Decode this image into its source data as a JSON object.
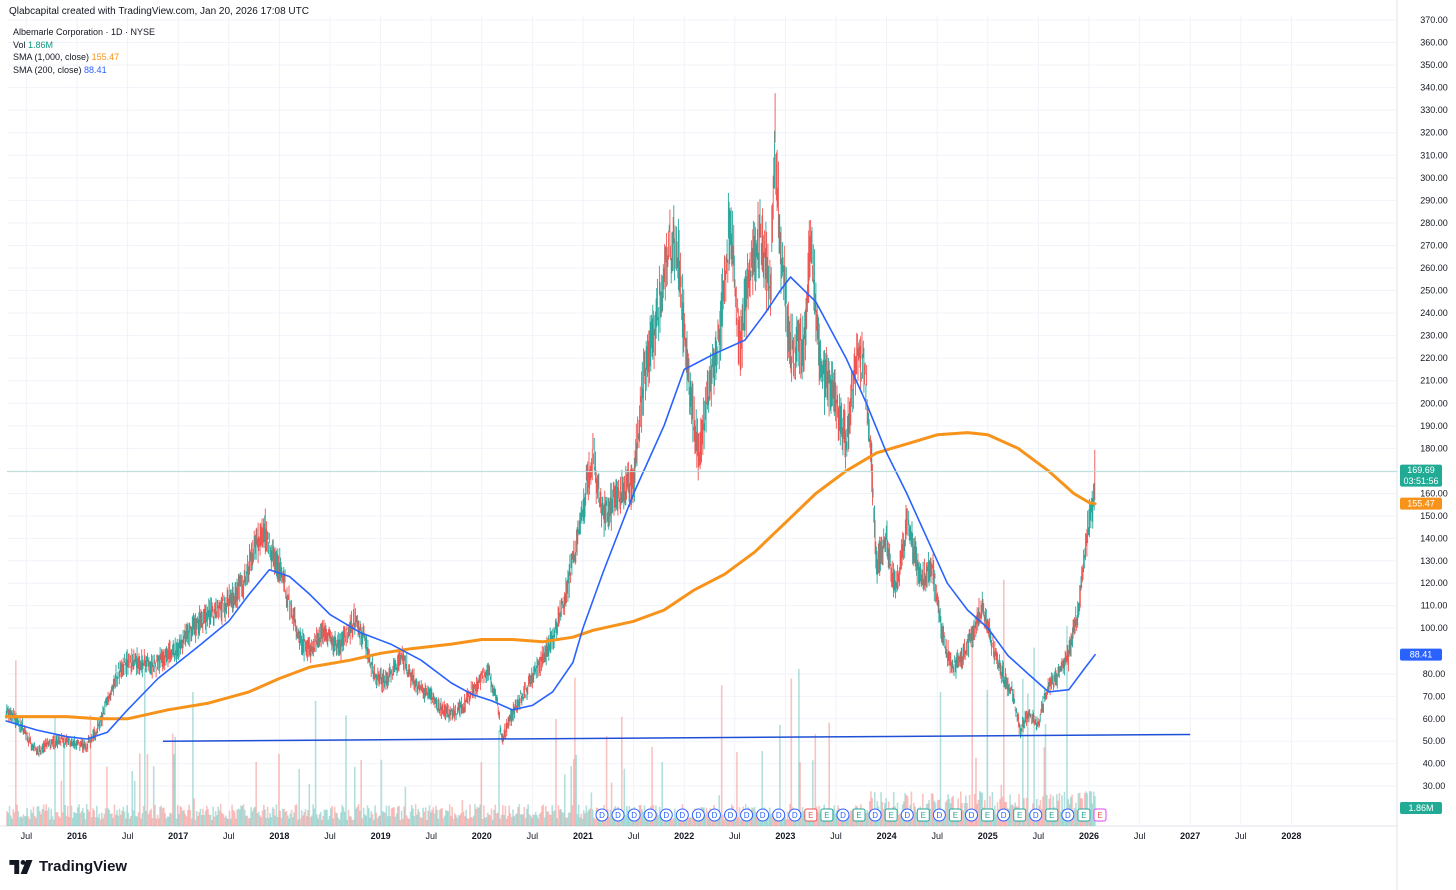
{
  "header": {
    "credit": "Qlabcapital created with TradingView.com, Jan 20, 2026 17:08 UTC"
  },
  "legend": {
    "symbol": "Albemarle Corporation · 1D · NYSE",
    "vol_label": "Vol",
    "vol_value": "1.86M",
    "sma1000_label": "SMA (1,000, close)",
    "sma1000_value": "155.47",
    "sma200_label": "SMA (200, close)",
    "sma200_value": "88.41"
  },
  "brand": {
    "name": "TradingView",
    "icon": "tradingview-logo-icon"
  },
  "colors": {
    "sma1000": "#f7931a",
    "sma200": "#2962ff",
    "up": "#26a69a",
    "down": "#ef5350",
    "support_line": "#1e4fd6",
    "price_line": "#b8dcd7",
    "dividend_marker": "#2962ff",
    "earnings_marker": "#ef5350"
  },
  "price_badges": {
    "last_price": "169.69",
    "countdown": "03:51:56",
    "sma1000": "155.47",
    "sma200": "88.41",
    "volume": "1.86M"
  },
  "event_markers": {
    "dividend": "D",
    "earnings": "E",
    "sequence": [
      "D",
      "D",
      "D",
      "D",
      "D",
      "D",
      "D",
      "D",
      "D",
      "D",
      "D",
      "D",
      "D",
      "E",
      "E",
      "D",
      "E",
      "D",
      "E",
      "D",
      "E",
      "D",
      "E",
      "D",
      "E",
      "D",
      "E",
      "D",
      "E",
      "D",
      "E",
      "E"
    ]
  },
  "chart_data": {
    "type": "line",
    "title": "Albemarle Corporation · 1D · NYSE",
    "y_axis": {
      "position": "right",
      "ticks": [
        30,
        40,
        50,
        60,
        70,
        80,
        100,
        110,
        120,
        130,
        140,
        150,
        160,
        170,
        180,
        190,
        200,
        210,
        220,
        230,
        240,
        250,
        260,
        270,
        280,
        290,
        300,
        310,
        320,
        330,
        340,
        350,
        360,
        370
      ],
      "tick_labels": [
        "30.00",
        "40.00",
        "50.00",
        "60.00",
        "70.00",
        "80.00",
        "100.00",
        "110.00",
        "120.00",
        "130.00",
        "140.00",
        "150.00",
        "160.00",
        "",
        "180.00",
        "190.00",
        "200.00",
        "210.00",
        "220.00",
        "230.00",
        "240.00",
        "250.00",
        "260.00",
        "270.00",
        "280.00",
        "290.00",
        "300.00",
        "310.00",
        "320.00",
        "330.00",
        "340.00",
        "350.00",
        "360.00",
        "370.00"
      ],
      "ylim": [
        25,
        372
      ]
    },
    "x_axis": {
      "xlim": [
        2015.3,
        2028.85
      ],
      "ticks": [
        {
          "t": 2015.5,
          "label": "Jul"
        },
        {
          "t": 2016.0,
          "label": "2016"
        },
        {
          "t": 2016.5,
          "label": "Jul"
        },
        {
          "t": 2017.0,
          "label": "2017"
        },
        {
          "t": 2017.5,
          "label": "Jul"
        },
        {
          "t": 2018.0,
          "label": "2018"
        },
        {
          "t": 2018.5,
          "label": "Jul"
        },
        {
          "t": 2019.0,
          "label": "2019"
        },
        {
          "t": 2019.5,
          "label": "Jul"
        },
        {
          "t": 2020.0,
          "label": "2020"
        },
        {
          "t": 2020.5,
          "label": "Jul"
        },
        {
          "t": 2021.0,
          "label": "2021"
        },
        {
          "t": 2021.5,
          "label": "Jul"
        },
        {
          "t": 2022.0,
          "label": "2022"
        },
        {
          "t": 2022.5,
          "label": "Jul"
        },
        {
          "t": 2023.0,
          "label": "2023"
        },
        {
          "t": 2023.5,
          "label": "Jul"
        },
        {
          "t": 2024.0,
          "label": "2024"
        },
        {
          "t": 2024.5,
          "label": "Jul"
        },
        {
          "t": 2025.0,
          "label": "2025"
        },
        {
          "t": 2025.5,
          "label": "Jul"
        },
        {
          "t": 2026.0,
          "label": "2026"
        },
        {
          "t": 2026.5,
          "label": "Jul"
        },
        {
          "t": 2027.0,
          "label": "2027"
        },
        {
          "t": 2027.5,
          "label": "Jul"
        },
        {
          "t": 2028.0,
          "label": "2028"
        }
      ]
    },
    "grid": true,
    "last_price": 169.69,
    "price_path": [
      [
        2015.3,
        64
      ],
      [
        2015.45,
        57
      ],
      [
        2015.6,
        45
      ],
      [
        2015.75,
        50
      ],
      [
        2015.9,
        50
      ],
      [
        2016.0,
        49
      ],
      [
        2016.1,
        48
      ],
      [
        2016.2,
        55
      ],
      [
        2016.3,
        68
      ],
      [
        2016.4,
        80
      ],
      [
        2016.5,
        85
      ],
      [
        2016.6,
        85
      ],
      [
        2016.75,
        83
      ],
      [
        2016.9,
        89
      ],
      [
        2017.0,
        92
      ],
      [
        2017.15,
        100
      ],
      [
        2017.3,
        106
      ],
      [
        2017.45,
        110
      ],
      [
        2017.55,
        115
      ],
      [
        2017.65,
        120
      ],
      [
        2017.75,
        137
      ],
      [
        2017.85,
        144
      ],
      [
        2017.95,
        130
      ],
      [
        2018.0,
        128
      ],
      [
        2018.1,
        110
      ],
      [
        2018.2,
        95
      ],
      [
        2018.3,
        90
      ],
      [
        2018.45,
        98
      ],
      [
        2018.6,
        92
      ],
      [
        2018.75,
        105
      ],
      [
        2018.85,
        93
      ],
      [
        2018.95,
        78
      ],
      [
        2019.05,
        77
      ],
      [
        2019.2,
        88
      ],
      [
        2019.35,
        75
      ],
      [
        2019.5,
        70
      ],
      [
        2019.6,
        64
      ],
      [
        2019.75,
        62
      ],
      [
        2019.9,
        72
      ],
      [
        2020.05,
        81
      ],
      [
        2020.15,
        70
      ],
      [
        2020.2,
        51
      ],
      [
        2020.3,
        62
      ],
      [
        2020.4,
        70
      ],
      [
        2020.5,
        78
      ],
      [
        2020.6,
        87
      ],
      [
        2020.7,
        95
      ],
      [
        2020.8,
        110
      ],
      [
        2020.9,
        130
      ],
      [
        2021.0,
        150
      ],
      [
        2021.05,
        170
      ],
      [
        2021.1,
        175
      ],
      [
        2021.2,
        150
      ],
      [
        2021.35,
        160
      ],
      [
        2021.5,
        165
      ],
      [
        2021.6,
        210
      ],
      [
        2021.7,
        232
      ],
      [
        2021.8,
        255
      ],
      [
        2021.85,
        270
      ],
      [
        2021.95,
        265
      ],
      [
        2022.0,
        230
      ],
      [
        2022.1,
        190
      ],
      [
        2022.15,
        175
      ],
      [
        2022.25,
        210
      ],
      [
        2022.35,
        230
      ],
      [
        2022.45,
        280
      ],
      [
        2022.55,
        225
      ],
      [
        2022.65,
        260
      ],
      [
        2022.75,
        275
      ],
      [
        2022.85,
        250
      ],
      [
        2022.9,
        320
      ],
      [
        2022.95,
        270
      ],
      [
        2023.0,
        250
      ],
      [
        2023.05,
        222
      ],
      [
        2023.1,
        225
      ],
      [
        2023.2,
        230
      ],
      [
        2023.25,
        275
      ],
      [
        2023.35,
        215
      ],
      [
        2023.5,
        200
      ],
      [
        2023.6,
        183
      ],
      [
        2023.7,
        220
      ],
      [
        2023.78,
        215
      ],
      [
        2023.85,
        175
      ],
      [
        2023.9,
        128
      ],
      [
        2024.0,
        140
      ],
      [
        2024.05,
        125
      ],
      [
        2024.1,
        118
      ],
      [
        2024.2,
        148
      ],
      [
        2024.35,
        120
      ],
      [
        2024.45,
        128
      ],
      [
        2024.55,
        97
      ],
      [
        2024.65,
        82
      ],
      [
        2024.75,
        88
      ],
      [
        2024.85,
        98
      ],
      [
        2024.95,
        110
      ],
      [
        2025.05,
        92
      ],
      [
        2025.15,
        80
      ],
      [
        2025.25,
        70
      ],
      [
        2025.32,
        55
      ],
      [
        2025.4,
        62
      ],
      [
        2025.5,
        58
      ],
      [
        2025.6,
        75
      ],
      [
        2025.7,
        80
      ],
      [
        2025.8,
        88
      ],
      [
        2025.85,
        100
      ],
      [
        2025.9,
        110
      ],
      [
        2025.95,
        130
      ],
      [
        2026.0,
        148
      ],
      [
        2026.04,
        155
      ],
      [
        2026.06,
        169.69
      ]
    ],
    "series": [
      {
        "name": "SMA (1,000, close)",
        "values": [
          [
            2015.3,
            61
          ],
          [
            2015.6,
            61
          ],
          [
            2015.9,
            61
          ],
          [
            2016.2,
            60
          ],
          [
            2016.5,
            60
          ],
          [
            2016.9,
            64
          ],
          [
            2017.3,
            67
          ],
          [
            2017.7,
            72
          ],
          [
            2018.0,
            78
          ],
          [
            2018.3,
            83
          ],
          [
            2018.7,
            86
          ],
          [
            2019.0,
            89
          ],
          [
            2019.3,
            91
          ],
          [
            2019.7,
            93
          ],
          [
            2020.0,
            95
          ],
          [
            2020.3,
            95
          ],
          [
            2020.6,
            94
          ],
          [
            2020.9,
            96
          ],
          [
            2021.1,
            99
          ],
          [
            2021.5,
            103
          ],
          [
            2021.8,
            108
          ],
          [
            2022.1,
            117
          ],
          [
            2022.4,
            124
          ],
          [
            2022.7,
            134
          ],
          [
            2023.0,
            147
          ],
          [
            2023.3,
            160
          ],
          [
            2023.6,
            170
          ],
          [
            2023.9,
            178
          ],
          [
            2024.2,
            182
          ],
          [
            2024.5,
            186
          ],
          [
            2024.8,
            187
          ],
          [
            2025.0,
            186
          ],
          [
            2025.3,
            180
          ],
          [
            2025.6,
            170
          ],
          [
            2025.85,
            160
          ],
          [
            2026.0,
            156
          ],
          [
            2026.06,
            155.47
          ]
        ]
      },
      {
        "name": "SMA (200, close)",
        "values": [
          [
            2015.3,
            59
          ],
          [
            2015.6,
            55
          ],
          [
            2015.9,
            52
          ],
          [
            2016.1,
            51
          ],
          [
            2016.3,
            54
          ],
          [
            2016.5,
            64
          ],
          [
            2016.8,
            78
          ],
          [
            2017.2,
            92
          ],
          [
            2017.5,
            103
          ],
          [
            2017.7,
            115
          ],
          [
            2017.9,
            126
          ],
          [
            2018.1,
            123
          ],
          [
            2018.3,
            115
          ],
          [
            2018.5,
            106
          ],
          [
            2018.8,
            98
          ],
          [
            2019.1,
            93
          ],
          [
            2019.4,
            86
          ],
          [
            2019.7,
            76
          ],
          [
            2019.9,
            71
          ],
          [
            2020.1,
            68
          ],
          [
            2020.3,
            64
          ],
          [
            2020.5,
            66
          ],
          [
            2020.7,
            72
          ],
          [
            2020.9,
            85
          ],
          [
            2021.0,
            100
          ],
          [
            2021.2,
            125
          ],
          [
            2021.5,
            160
          ],
          [
            2021.8,
            190
          ],
          [
            2022.0,
            215
          ],
          [
            2022.3,
            222
          ],
          [
            2022.6,
            228
          ],
          [
            2022.8,
            240
          ],
          [
            2022.95,
            250
          ],
          [
            2023.05,
            256
          ],
          [
            2023.3,
            245
          ],
          [
            2023.6,
            220
          ],
          [
            2023.8,
            200
          ],
          [
            2024.0,
            178
          ],
          [
            2024.2,
            160
          ],
          [
            2024.4,
            140
          ],
          [
            2024.6,
            120
          ],
          [
            2024.8,
            108
          ],
          [
            2025.0,
            100
          ],
          [
            2025.2,
            88
          ],
          [
            2025.4,
            80
          ],
          [
            2025.6,
            72
          ],
          [
            2025.8,
            73
          ],
          [
            2025.95,
            82
          ],
          [
            2026.06,
            88.41
          ]
        ]
      }
    ],
    "support_line": {
      "from": [
        2016.85,
        50
      ],
      "to": [
        2027.0,
        53
      ]
    }
  }
}
